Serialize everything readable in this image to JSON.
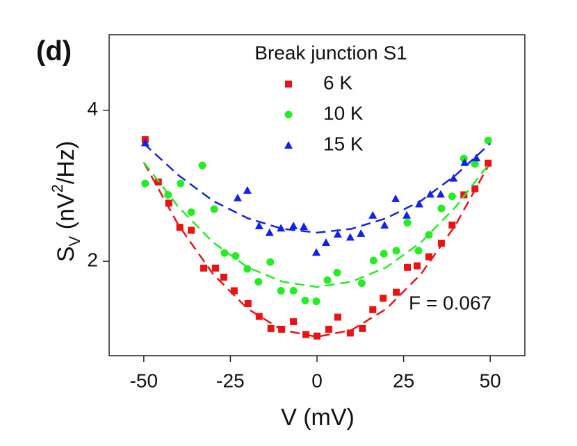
{
  "chart_data": {
    "type": "scatter",
    "annotations": {
      "panel": "(d)",
      "fano": "F = 0.067"
    },
    "legend_title": "Break junction S1",
    "xlabel": "V (mV)",
    "ylabel": [
      {
        "text": "S"
      },
      {
        "text": "V",
        "baseline": "sub"
      },
      {
        "text": " (nV"
      },
      {
        "text": "2",
        "baseline": "super"
      },
      {
        "text": "/Hz)"
      }
    ],
    "xlim": [
      -60,
      60
    ],
    "xticks": [
      -50,
      -25,
      0,
      25,
      50
    ],
    "ylim": [
      0.75,
      5
    ],
    "yticks": [
      2,
      4
    ],
    "series": [
      {
        "name": "6 K",
        "color": "#ee1111",
        "marker": "square",
        "x": [
          -49.6,
          -45.8,
          -42.8,
          -39.6,
          -36.3,
          -32.7,
          -29.3,
          -26.9,
          -23.9,
          -19.9,
          -16.7,
          -13.3,
          -10.2,
          -6.8,
          -3.2,
          0,
          3.4,
          6.0,
          9.6,
          13.1,
          16.1,
          19.1,
          22.9,
          26.1,
          28.9,
          32.3,
          35.9,
          39.0,
          42.4,
          45.6,
          49.4
        ],
        "values": [
          3.61,
          3.05,
          2.77,
          2.45,
          2.41,
          1.91,
          1.91,
          1.79,
          1.61,
          1.44,
          1.27,
          1.11,
          1.1,
          1.2,
          1.03,
          1.01,
          1.1,
          1.26,
          1.05,
          1.11,
          1.36,
          1.51,
          1.59,
          1.92,
          1.94,
          2.06,
          2.24,
          2.48,
          2.88,
          2.96,
          3.3
        ],
        "fit": {
          "x": [
            -50,
            -40,
            -30,
            -20,
            -10,
            0,
            10,
            20,
            30,
            40,
            50
          ],
          "values": [
            3.31,
            2.48,
            1.83,
            1.37,
            1.09,
            1.0,
            1.09,
            1.37,
            1.83,
            2.48,
            3.31
          ]
        }
      },
      {
        "name": "10 K",
        "color": "#22ee22",
        "marker": "circle",
        "x": [
          -49.6,
          -43.0,
          -39.4,
          -36.3,
          -33.1,
          -29.7,
          -26.7,
          -23.5,
          -20.1,
          -16.9,
          -13.5,
          -10.4,
          -6.8,
          -3.4,
          -0.2,
          3.0,
          5.8,
          12.9,
          16.3,
          19.3,
          22.9,
          26.1,
          29.3,
          32.3,
          35.9,
          39.0,
          42.4,
          45.6,
          49.4
        ],
        "values": [
          3.03,
          2.88,
          3.03,
          2.65,
          3.27,
          2.69,
          2.11,
          2.07,
          1.9,
          1.73,
          1.99,
          1.61,
          1.61,
          1.48,
          1.47,
          1.75,
          1.85,
          1.71,
          2.01,
          2.1,
          2.14,
          2.51,
          2.14,
          2.35,
          2.7,
          2.86,
          3.36,
          3.29,
          3.6
        ],
        "fit": {
          "x": [
            -50,
            -40,
            -30,
            -20,
            -10,
            0,
            10,
            20,
            30,
            40,
            50
          ],
          "values": [
            3.31,
            2.72,
            2.25,
            1.92,
            1.73,
            1.66,
            1.73,
            1.92,
            2.25,
            2.72,
            3.31
          ]
        }
      },
      {
        "name": "15 K",
        "color": "#1122ee",
        "marker": "triangle",
        "x": [
          -49.6,
          -22.9,
          -20.1,
          -16.7,
          -13.7,
          -10.4,
          -6.8,
          -3.8,
          -0.2,
          2.6,
          6.0,
          9.6,
          12.7,
          16.1,
          19.5,
          22.7,
          25.9,
          29.5,
          32.7,
          35.7,
          39.4,
          42.6,
          46.0
        ],
        "values": [
          3.57,
          2.84,
          2.94,
          2.47,
          2.38,
          2.44,
          2.47,
          2.46,
          2.12,
          2.25,
          2.36,
          2.32,
          2.37,
          2.61,
          2.48,
          2.83,
          2.61,
          2.76,
          2.89,
          2.89,
          3.1,
          3.31,
          3.37
        ],
        "fit": {
          "x": [
            -50,
            -40,
            -30,
            -20,
            -10,
            0,
            10,
            20,
            30,
            40,
            50
          ],
          "values": [
            3.56,
            3.14,
            2.8,
            2.57,
            2.43,
            2.38,
            2.43,
            2.57,
            2.8,
            3.14,
            3.56
          ]
        }
      }
    ]
  }
}
